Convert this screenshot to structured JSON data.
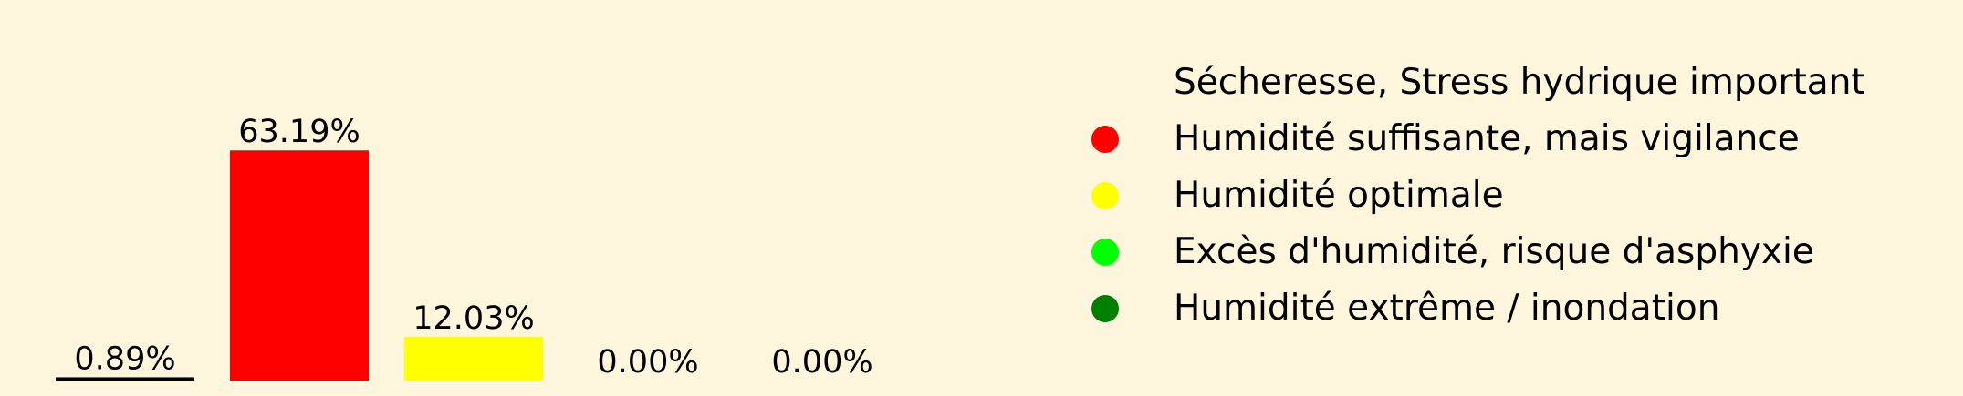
{
  "chart_data": {
    "type": "bar",
    "background": "#fdf6dc",
    "categories": [
      "Sécheresse, Stress hydrique important",
      "Humidité suffisante, mais vigilance",
      "Humidité optimale",
      "Excès d'humidité, risque d'asphyxie",
      "Humidité extrême / inondation"
    ],
    "values": [
      0.89,
      63.19,
      12.03,
      0.0,
      0.0
    ],
    "value_labels": [
      "0.89%",
      "63.19%",
      "12.03%",
      "0.00%",
      "0.00%"
    ],
    "colors": [
      "#000000",
      "#ff0000",
      "#ffff00",
      "#00ff00",
      "#008000"
    ],
    "unit": "%",
    "ylim": [
      0,
      100
    ],
    "grid": false,
    "axes_visible": false,
    "legend": {
      "placement": "right",
      "entries": [
        {
          "label": "Sécheresse, Stress hydrique important",
          "color": "#000000"
        },
        {
          "label": "Humidité suffisante, mais vigilance",
          "color": "#ff0000"
        },
        {
          "label": "Humidité optimale",
          "color": "#ffff00"
        },
        {
          "label": "Excès d'humidité, risque d'asphyxie",
          "color": "#00ff00"
        },
        {
          "label": "Humidité extrême / inondation",
          "color": "#008000"
        }
      ]
    }
  }
}
